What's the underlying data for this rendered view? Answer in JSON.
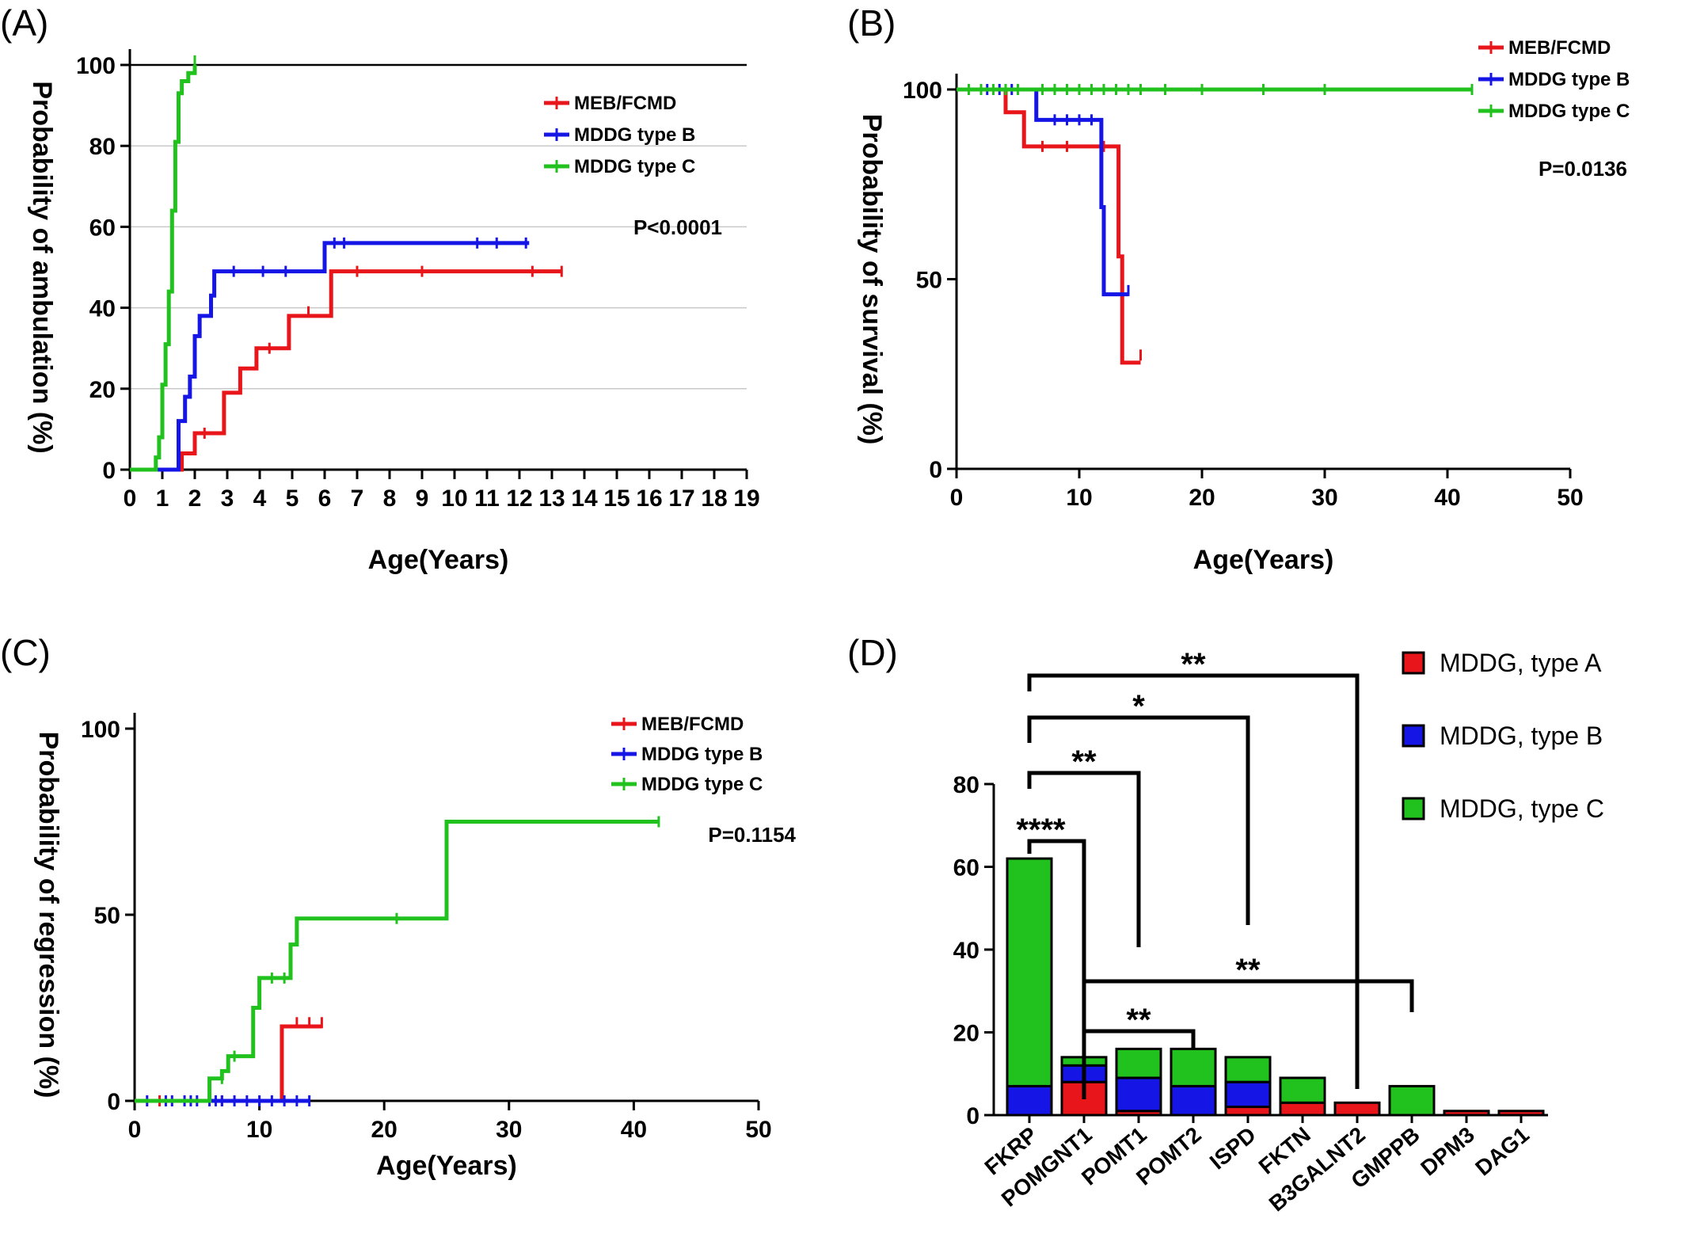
{
  "chart_data": [
    {
      "type": "line",
      "panel": "(A)",
      "xlabel": "Age(Years)",
      "ylabel": "Probability of ambulation (%)",
      "xlim": [
        0,
        19
      ],
      "ylim": [
        0,
        100
      ],
      "xticks": [
        0,
        1,
        2,
        3,
        4,
        5,
        6,
        7,
        8,
        9,
        10,
        11,
        12,
        13,
        14,
        15,
        16,
        17,
        18,
        19
      ],
      "yticks": [
        0,
        20,
        40,
        60,
        80,
        100
      ],
      "grid": true,
      "legend": "top-right",
      "p_value": "P<0.0001",
      "series": [
        {
          "name": "MEB/FCMD",
          "color": "#e8161b",
          "steps": [
            [
              0,
              0
            ],
            [
              1.6,
              4
            ],
            [
              2,
              9
            ],
            [
              2.9,
              19
            ],
            [
              3.4,
              25
            ],
            [
              3.9,
              30
            ],
            [
              4.9,
              38
            ],
            [
              6.2,
              49
            ],
            [
              13.3,
              49
            ]
          ],
          "censors": [
            [
              2.3,
              9
            ],
            [
              4.3,
              30
            ],
            [
              5.5,
              39
            ],
            [
              7,
              49
            ],
            [
              9,
              49
            ],
            [
              12.4,
              49
            ],
            [
              13.3,
              49
            ]
          ]
        },
        {
          "name": "MDDG type B",
          "color": "#1515e6",
          "steps": [
            [
              0,
              0
            ],
            [
              1.5,
              12
            ],
            [
              1.7,
              18
            ],
            [
              1.85,
              23
            ],
            [
              2.0,
              33
            ],
            [
              2.15,
              38
            ],
            [
              2.5,
              43
            ],
            [
              2.6,
              49
            ],
            [
              6.0,
              56
            ],
            [
              12.3,
              56
            ]
          ],
          "censors": [
            [
              3.2,
              49
            ],
            [
              4.1,
              49
            ],
            [
              4.8,
              49
            ],
            [
              6.3,
              56
            ],
            [
              6.6,
              56
            ],
            [
              10.7,
              56
            ],
            [
              11.3,
              56
            ],
            [
              12.2,
              56
            ]
          ]
        },
        {
          "name": "MDDG type C",
          "color": "#22c21e",
          "steps": [
            [
              0,
              0
            ],
            [
              0.8,
              3
            ],
            [
              0.9,
              8
            ],
            [
              1.0,
              21
            ],
            [
              1.1,
              31
            ],
            [
              1.2,
              44
            ],
            [
              1.3,
              64
            ],
            [
              1.4,
              81
            ],
            [
              1.5,
              93
            ],
            [
              1.6,
              96
            ],
            [
              1.8,
              98
            ],
            [
              2.0,
              100
            ]
          ],
          "censors": [
            [
              2.0,
              101
            ]
          ]
        }
      ]
    },
    {
      "type": "line",
      "panel": "(B)",
      "xlabel": "Age(Years)",
      "ylabel": "Probability of survival (%)",
      "xlim": [
        0,
        50
      ],
      "ylim": [
        0,
        100
      ],
      "xticks": [
        0,
        10,
        20,
        30,
        40,
        50
      ],
      "yticks": [
        0,
        50,
        100
      ],
      "legend": "top-right",
      "p_value": "P=0.0136",
      "series": [
        {
          "name": "MEB/FCMD",
          "color": "#e8161b",
          "steps": [
            [
              0,
              100
            ],
            [
              4,
              94
            ],
            [
              5.5,
              85
            ],
            [
              13,
              85
            ],
            [
              13.2,
              56
            ],
            [
              13.5,
              28
            ],
            [
              15,
              28
            ]
          ],
          "censors": [
            [
              2,
              100
            ],
            [
              3,
              100
            ],
            [
              7,
              85
            ],
            [
              9,
              85
            ],
            [
              12,
              85
            ],
            [
              15,
              30
            ]
          ]
        },
        {
          "name": "MDDG type B",
          "color": "#1515e6",
          "steps": [
            [
              0,
              100
            ],
            [
              6.5,
              92
            ],
            [
              11.6,
              92
            ],
            [
              11.8,
              69
            ],
            [
              12,
              46
            ],
            [
              14,
              46
            ]
          ],
          "censors": [
            [
              1,
              100
            ],
            [
              2.5,
              100
            ],
            [
              3.5,
              100
            ],
            [
              4.5,
              100
            ],
            [
              8,
              92
            ],
            [
              9,
              92
            ],
            [
              10,
              92
            ],
            [
              11,
              92
            ],
            [
              14,
              47
            ]
          ]
        },
        {
          "name": "MDDG type C",
          "color": "#22c21e",
          "steps": [
            [
              0,
              100
            ],
            [
              42,
              100
            ]
          ],
          "censors": [
            [
              1,
              100
            ],
            [
              2,
              100
            ],
            [
              3,
              100
            ],
            [
              4,
              100
            ],
            [
              5,
              100
            ],
            [
              7,
              100
            ],
            [
              8,
              100
            ],
            [
              9,
              100
            ],
            [
              10,
              100
            ],
            [
              11,
              100
            ],
            [
              12,
              100
            ],
            [
              13,
              100
            ],
            [
              14,
              100
            ],
            [
              15,
              100
            ],
            [
              17,
              100
            ],
            [
              20,
              100
            ],
            [
              25,
              100
            ],
            [
              30,
              100
            ],
            [
              42,
              100
            ]
          ]
        }
      ]
    },
    {
      "type": "line",
      "panel": "(C)",
      "xlabel": "Age(Years)",
      "ylabel": "Probability of regression (%)",
      "xlim": [
        0,
        50
      ],
      "ylim": [
        0,
        100
      ],
      "xticks": [
        0,
        10,
        20,
        30,
        40,
        50
      ],
      "yticks": [
        0,
        50,
        100
      ],
      "legend": "top-right",
      "p_value": "P=0.1154",
      "series": [
        {
          "name": "MEB/FCMD",
          "color": "#e8161b",
          "steps": [
            [
              0,
              0
            ],
            [
              11.8,
              20
            ],
            [
              15,
              20
            ]
          ],
          "censors": [
            [
              2,
              0
            ],
            [
              7,
              0
            ],
            [
              13,
              21
            ],
            [
              14,
              21
            ],
            [
              15,
              21
            ]
          ]
        },
        {
          "name": "MDDG type B",
          "color": "#1515e6",
          "steps": [
            [
              0,
              0
            ],
            [
              14,
              0
            ]
          ],
          "censors": [
            [
              1,
              0
            ],
            [
              2.5,
              0
            ],
            [
              3,
              0
            ],
            [
              4,
              0
            ],
            [
              4.5,
              0
            ],
            [
              5,
              0
            ],
            [
              6,
              0
            ],
            [
              6.5,
              0
            ],
            [
              7,
              0
            ],
            [
              8,
              0
            ],
            [
              9,
              0
            ],
            [
              10,
              0
            ],
            [
              11,
              0
            ],
            [
              12,
              0
            ],
            [
              13,
              0
            ],
            [
              14,
              0
            ]
          ]
        },
        {
          "name": "MDDG type C",
          "color": "#22c21e",
          "steps": [
            [
              0,
              0
            ],
            [
              6,
              6
            ],
            [
              7,
              8
            ],
            [
              7.5,
              12
            ],
            [
              9.5,
              25
            ],
            [
              10,
              33
            ],
            [
              12.5,
              42
            ],
            [
              13,
              49
            ],
            [
              25,
              75
            ],
            [
              42,
              75
            ]
          ],
          "censors": [
            [
              7,
              6
            ],
            [
              8,
              12
            ],
            [
              11,
              33
            ],
            [
              12,
              33
            ],
            [
              21,
              49
            ],
            [
              42,
              75
            ]
          ]
        }
      ]
    },
    {
      "type": "bar",
      "panel": "(D)",
      "stacked": true,
      "ylim": [
        0,
        80
      ],
      "yticks": [
        0,
        20,
        40,
        60,
        80
      ],
      "legend": "top-right",
      "categories": [
        "FKRP",
        "POMGNT1",
        "POMT1",
        "POMT2",
        "ISPD",
        "FKTN",
        "B3GALNT2",
        "GMPPB",
        "DPM3",
        "DAG1"
      ],
      "series": [
        {
          "name": "MDDG, type A",
          "color": "#e8161b",
          "values": [
            0,
            8,
            1,
            0,
            2,
            3,
            3,
            0,
            1,
            1
          ]
        },
        {
          "name": "MDDG, type B",
          "color": "#1515e6",
          "values": [
            7,
            4,
            8,
            7,
            6,
            0,
            0,
            0,
            0,
            0
          ]
        },
        {
          "name": "MDDG, type C",
          "color": "#22c21e",
          "values": [
            55,
            2,
            7,
            9,
            6,
            6,
            0,
            7,
            0,
            0
          ]
        }
      ],
      "significance": [
        {
          "from": "FKRP",
          "to": "POMGNT1",
          "label": "****"
        },
        {
          "from": "FKRP",
          "to": "POMT1",
          "label": "**"
        },
        {
          "from": "FKRP",
          "to": "ISPD",
          "label": "*"
        },
        {
          "from": "FKRP",
          "to": "B3GALNT2",
          "label": "**"
        },
        {
          "from": "POMGNT1",
          "to": "GMPPB",
          "label": "**"
        },
        {
          "from": "POMGNT1",
          "to": "POMT2",
          "label": "**"
        }
      ]
    }
  ]
}
